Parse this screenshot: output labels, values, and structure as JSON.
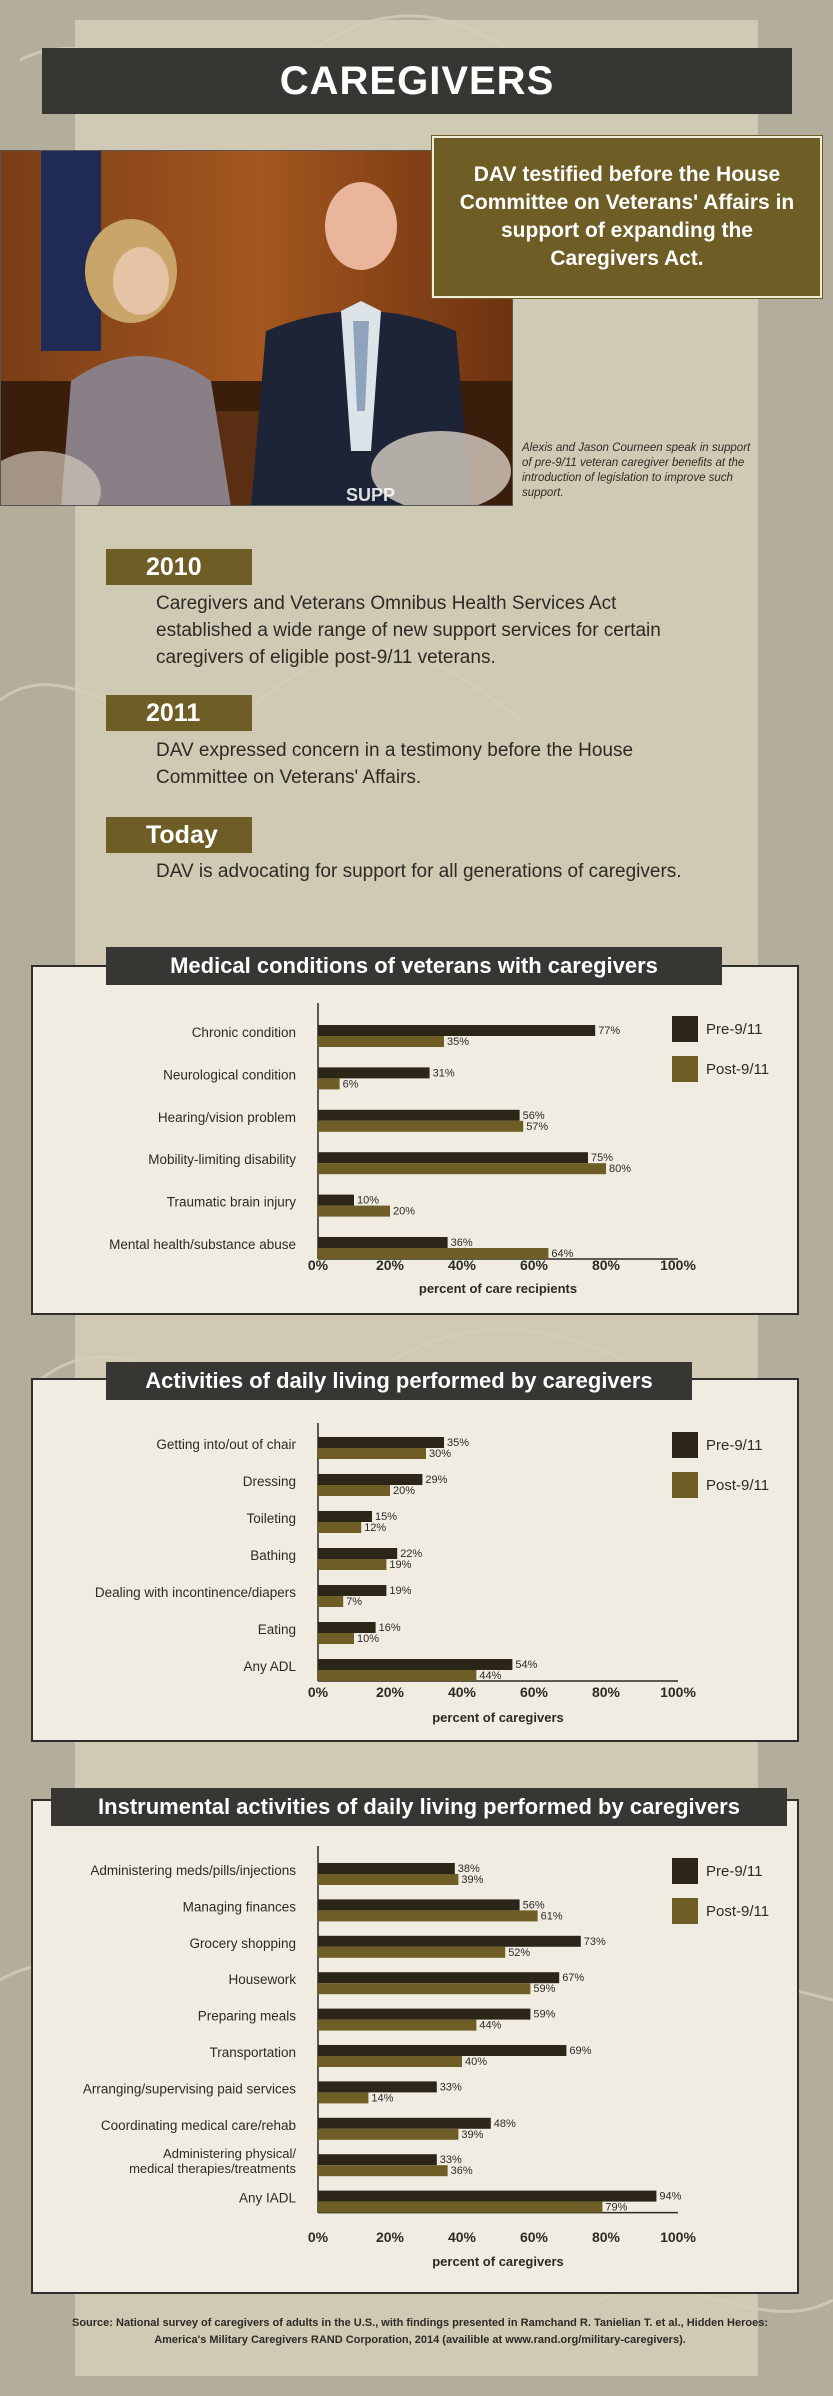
{
  "title": "CAREGIVERS",
  "testimony": "DAV testified before the House Committee on Veterans' Affairs in support of expanding the Caregivers Act.",
  "photo_caption": "Alexis and Jason Courneen speak in support of pre-9/11 veteran caregiver benefits at the introduction of legislation to improve such support.",
  "photo_sign_text": "SUPP",
  "timeline": [
    {
      "year": "2010",
      "text": "Caregivers and Veterans Omnibus Health Services Act established a wide range of new support services for certain caregivers of eligible post-9/11 veterans."
    },
    {
      "year": "2011",
      "text": "DAV expressed concern in a testimony before the House Committee on Veterans' Affairs."
    },
    {
      "year": "Today",
      "text": "DAV is advocating for support for all generations of caregivers."
    }
  ],
  "colors": {
    "pre": "#2b2618",
    "post": "#6e5d25",
    "panel_bg": "#f0ece2",
    "title_bg": "#373632"
  },
  "chart_data": [
    {
      "type": "bar",
      "title": "Medical conditions of veterans with caregivers",
      "categories": [
        "Chronic condition",
        "Neurological condition",
        "Hearing/vision problem",
        "Mobility-limiting disability",
        "Traumatic brain injury",
        "Mental health/substance abuse"
      ],
      "series": [
        {
          "name": "Pre-9/11",
          "values": [
            77,
            31,
            56,
            75,
            10,
            36
          ]
        },
        {
          "name": "Post-9/11",
          "values": [
            35,
            6,
            57,
            80,
            20,
            64
          ]
        }
      ],
      "xlabel": "percent of care recipients",
      "xlim": [
        0,
        100
      ],
      "xticks": [
        "0%",
        "20%",
        "40%",
        "60%",
        "80%",
        "100%"
      ],
      "legend": "right"
    },
    {
      "type": "bar",
      "title": "Activities of daily living performed by caregivers",
      "categories": [
        "Getting into/out of chair",
        "Dressing",
        "Toileting",
        "Bathing",
        "Dealing with incontinence/diapers",
        "Eating",
        "Any ADL"
      ],
      "series": [
        {
          "name": "Pre-9/11",
          "values": [
            35,
            29,
            15,
            22,
            19,
            16,
            54
          ]
        },
        {
          "name": "Post-9/11",
          "values": [
            30,
            20,
            12,
            19,
            7,
            10,
            44
          ]
        }
      ],
      "xlabel": "percent of caregivers",
      "xlim": [
        0,
        100
      ],
      "xticks": [
        "0%",
        "20%",
        "40%",
        "60%",
        "80%",
        "100%"
      ],
      "legend": "right"
    },
    {
      "type": "bar",
      "title": "Instrumental activities of daily living performed by caregivers",
      "categories": [
        "Administering meds/pills/injections",
        "Managing finances",
        "Grocery shopping",
        "Housework",
        "Preparing meals",
        "Transportation",
        "Arranging/supervising paid services",
        "Coordinating medical care/rehab",
        "Administering physical/ medical therapies/treatments",
        "Any IADL"
      ],
      "series": [
        {
          "name": "Pre-9/11",
          "values": [
            38,
            56,
            73,
            67,
            59,
            69,
            33,
            48,
            33,
            94
          ]
        },
        {
          "name": "Post-9/11",
          "values": [
            39,
            61,
            52,
            59,
            44,
            40,
            14,
            39,
            36,
            79
          ]
        }
      ],
      "xlabel": "percent of caregivers",
      "xlim": [
        0,
        100
      ],
      "xticks": [
        "0%",
        "20%",
        "40%",
        "60%",
        "80%",
        "100%"
      ],
      "legend": "right"
    }
  ],
  "source": "Source: National survey of caregivers of adults in the U.S., with findings presented in Ramchand R. Tanielian T. et al., Hidden Heroes: America's Military Caregivers RAND Corporation, 2014 (availible at www.rand.org/military-caregivers)."
}
